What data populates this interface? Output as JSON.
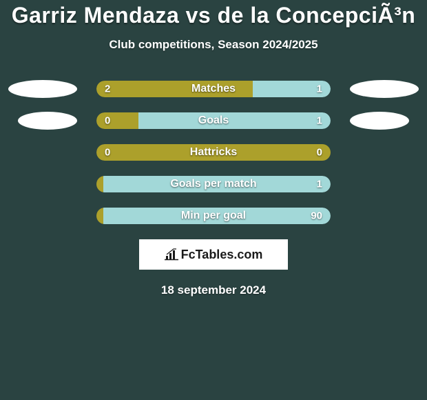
{
  "title": "Garriz Mendaza vs de la ConcepciÃ³n",
  "subtitle": "Club competitions, Season 2024/2025",
  "date": "18 september 2024",
  "brand_text": "FcTables.com",
  "colors": {
    "background": "#2a4341",
    "left_bar": "#aca02b",
    "right_bar": "#a2d8d8",
    "white": "#ffffff"
  },
  "rows": [
    {
      "label": "Matches",
      "left_value": "2",
      "right_value": "1",
      "left_pct": 66.7,
      "right_pct": 33.3,
      "show_avatars": true,
      "avatar_narrow": false
    },
    {
      "label": "Goals",
      "left_value": "0",
      "right_value": "1",
      "left_pct": 18,
      "right_pct": 82,
      "show_avatars": true,
      "avatar_narrow": true
    },
    {
      "label": "Hattricks",
      "left_value": "0",
      "right_value": "0",
      "left_pct": 100,
      "right_pct": 0,
      "show_avatars": false,
      "avatar_narrow": false
    },
    {
      "label": "Goals per match",
      "left_value": "",
      "right_value": "1",
      "left_pct": 3,
      "right_pct": 97,
      "show_avatars": false,
      "avatar_narrow": false
    },
    {
      "label": "Min per goal",
      "left_value": "",
      "right_value": "90",
      "left_pct": 3,
      "right_pct": 97,
      "show_avatars": false,
      "avatar_narrow": false
    }
  ]
}
